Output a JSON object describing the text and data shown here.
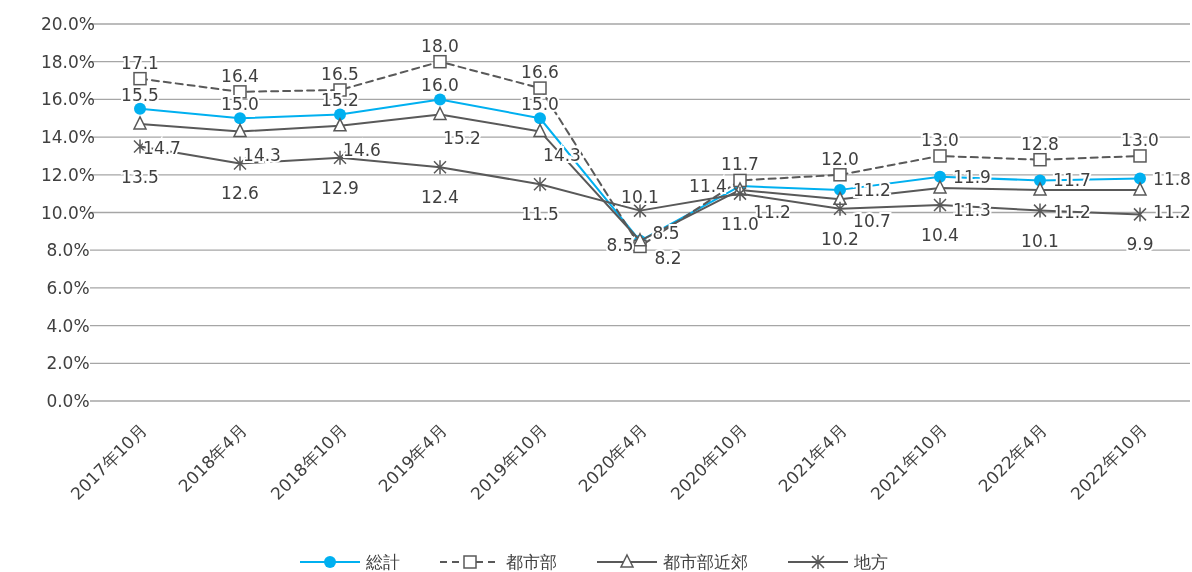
{
  "chart_data": {
    "type": "line",
    "categories": [
      "2017年10月",
      "2018年4月",
      "2018年10月",
      "2019年4月",
      "2019年10月",
      "2020年4月",
      "2020年10月",
      "2021年4月",
      "2021年10月",
      "2022年4月",
      "2022年10月"
    ],
    "series": [
      {
        "name": "総計",
        "color": "#00b0f0",
        "marker": "circle",
        "line_style": "solid",
        "values": [
          15.5,
          15.0,
          15.2,
          16.0,
          15.0,
          8.5,
          11.4,
          11.2,
          11.9,
          11.7,
          11.8
        ],
        "value_labels": [
          "15.5",
          "15.0",
          "15.2",
          "16.0",
          "15.0",
          "8.5",
          "11.4",
          "11.2",
          "11.9",
          "11.7",
          "11.8"
        ]
      },
      {
        "name": "都市部",
        "color": "#595959",
        "marker": "square",
        "line_style": "dashed",
        "values": [
          17.1,
          16.4,
          16.5,
          18.0,
          16.6,
          8.2,
          11.7,
          12.0,
          13.0,
          12.8,
          13.0
        ],
        "value_labels": [
          "17.1",
          "16.4",
          "16.5",
          "18.0",
          "16.6",
          "8.2",
          "11.7",
          "12.0",
          "13.0",
          "12.8",
          "13.0"
        ]
      },
      {
        "name": "都市部近郊",
        "color": "#595959",
        "marker": "triangle",
        "line_style": "solid",
        "values": [
          14.7,
          14.3,
          14.6,
          15.2,
          14.3,
          8.5,
          11.2,
          10.7,
          11.3,
          11.2,
          11.2
        ],
        "value_labels": [
          "14.7",
          "14.3",
          "14.6",
          "15.2",
          "14.3",
          "8.5",
          "11.2",
          "10.7",
          "11.3",
          "11.2",
          "11.2"
        ]
      },
      {
        "name": "地方",
        "color": "#595959",
        "marker": "cross",
        "line_style": "solid",
        "values": [
          13.5,
          12.6,
          12.9,
          12.4,
          11.5,
          10.1,
          11.0,
          10.2,
          10.4,
          10.1,
          9.9
        ],
        "value_labels": [
          "13.5",
          "12.6",
          "12.9",
          "12.4",
          "11.5",
          "10.1",
          "11.0",
          "10.2",
          "10.4",
          "10.1",
          "9.9"
        ]
      }
    ],
    "ylim": [
      0,
      20
    ],
    "yticks": [
      {
        "value": 0,
        "label": "0.0%"
      },
      {
        "value": 2,
        "label": "2.0%"
      },
      {
        "value": 4,
        "label": "4.0%"
      },
      {
        "value": 6,
        "label": "6.0%"
      },
      {
        "value": 8,
        "label": "8.0%"
      },
      {
        "value": 10,
        "label": "10.0%"
      },
      {
        "value": 12,
        "label": "12.0%"
      },
      {
        "value": 14,
        "label": "14.0%"
      },
      {
        "value": 16,
        "label": "16.0%"
      },
      {
        "value": 18,
        "label": "18.0%"
      },
      {
        "value": 20,
        "label": "20.0%"
      }
    ],
    "grid": "y",
    "legend": "bottom"
  }
}
